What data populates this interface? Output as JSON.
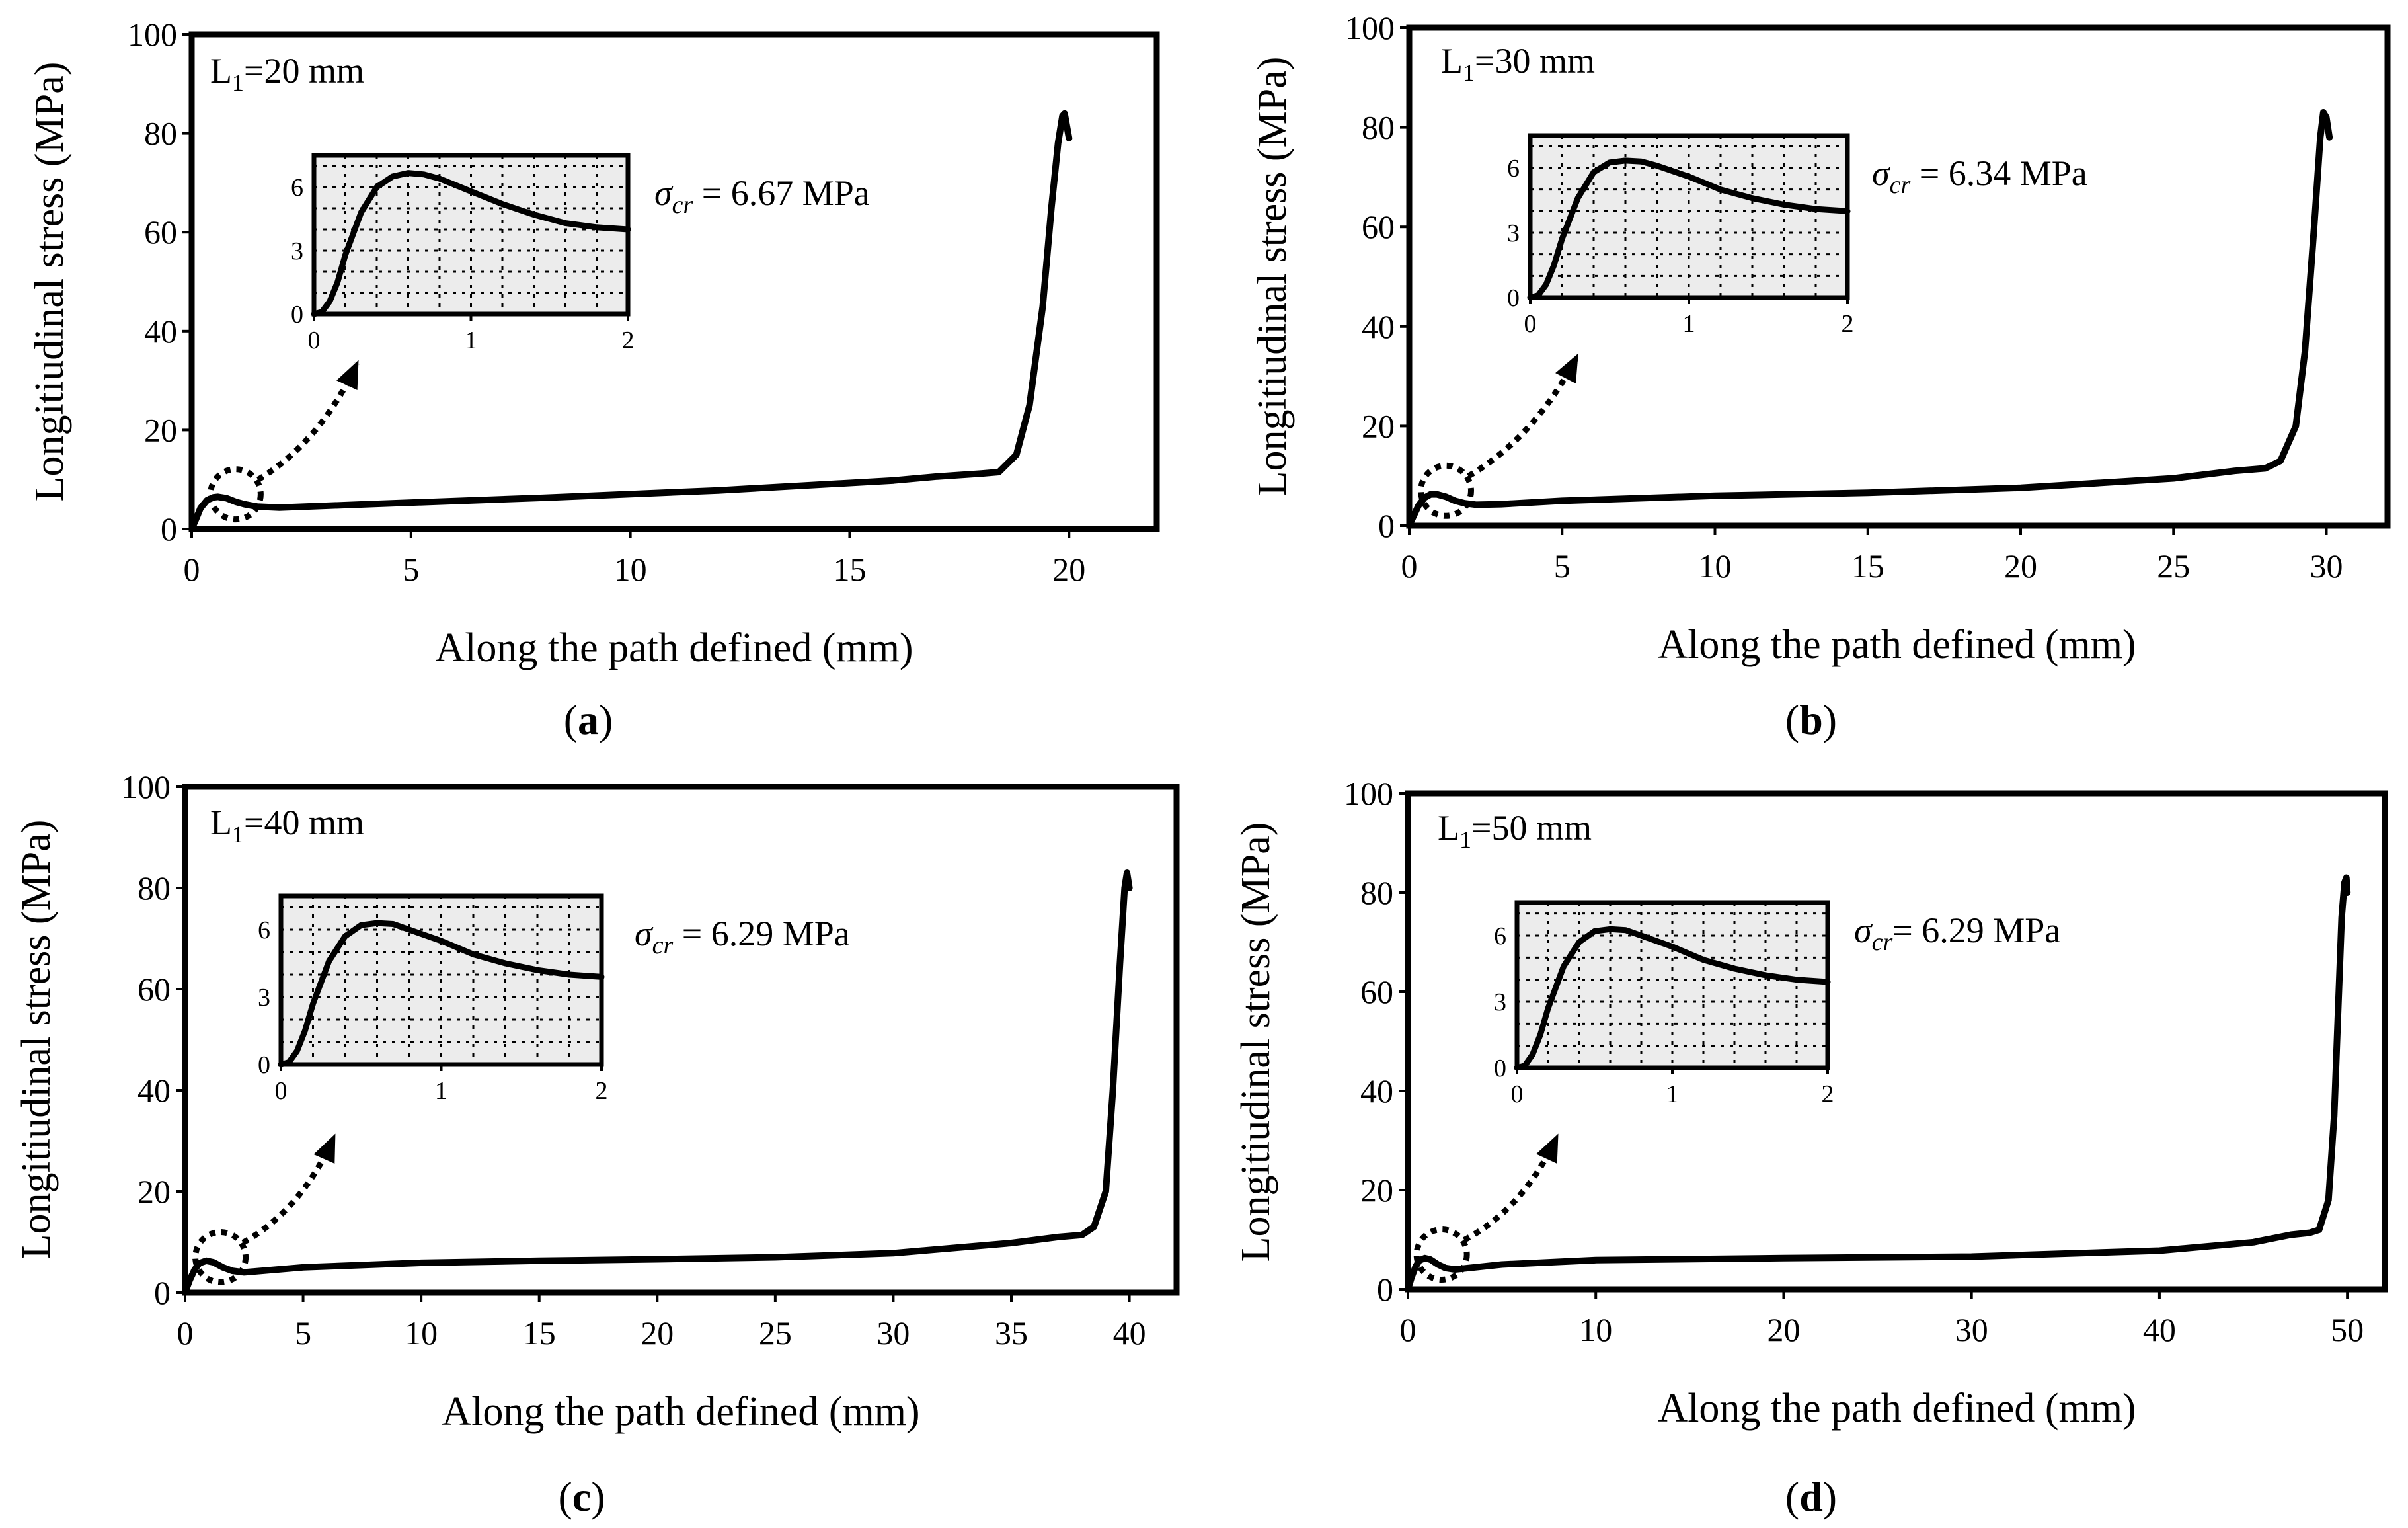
{
  "chart_data": [
    {
      "type": "line",
      "panel": "(a)",
      "panel_letter": "a",
      "title": "",
      "length_label": "L",
      "length_sub": "1",
      "length_value": "=20 mm",
      "sigma_prefix": "σ",
      "sigma_sub": "cr",
      "sigma_value": " = 6.67 MPa",
      "sigma_cr": 6.67,
      "xlabel": "Along the path defined (mm)",
      "ylabel": "Longitiudinal stress (MPa)",
      "xlim": [
        0,
        22
      ],
      "ylim": [
        0,
        100
      ],
      "xticks": [
        0,
        5,
        10,
        15,
        20
      ],
      "yticks": [
        0,
        20,
        40,
        60,
        80,
        100
      ],
      "x": [
        0,
        0.1,
        0.2,
        0.35,
        0.5,
        0.6,
        0.8,
        1.0,
        1.2,
        1.5,
        2,
        4,
        8,
        12,
        16,
        17,
        18,
        18.4,
        18.8,
        19.1,
        19.4,
        19.6,
        19.75,
        19.85,
        19.9,
        20.0
      ],
      "y": [
        0,
        2.0,
        4.2,
        5.8,
        6.4,
        6.5,
        6.2,
        5.5,
        5.0,
        4.5,
        4.3,
        5.0,
        6.3,
        7.8,
        9.8,
        10.6,
        11.2,
        11.5,
        15,
        25,
        45,
        65,
        78,
        83.5,
        84,
        79
      ],
      "inset": {
        "xlim": [
          0,
          2
        ],
        "ylim": [
          0,
          7.5
        ],
        "xticks": [
          0,
          1,
          2
        ],
        "yticks": [
          0,
          3,
          6
        ],
        "x": [
          0,
          0.05,
          0.1,
          0.15,
          0.2,
          0.3,
          0.4,
          0.5,
          0.6,
          0.7,
          0.8,
          1.0,
          1.2,
          1.4,
          1.6,
          1.8,
          2.0
        ],
        "y": [
          0,
          0.1,
          0.6,
          1.5,
          2.8,
          4.8,
          6.0,
          6.5,
          6.67,
          6.6,
          6.4,
          5.8,
          5.2,
          4.7,
          4.3,
          4.1,
          4.0
        ]
      }
    },
    {
      "type": "line",
      "panel": "(b)",
      "panel_letter": "b",
      "title": "",
      "length_label": "L",
      "length_sub": "1",
      "length_value": "=30 mm",
      "sigma_prefix": "σ",
      "sigma_sub": "cr",
      "sigma_value": " = 6.34 MPa",
      "sigma_cr": 6.34,
      "xlabel": "Along the path defined (mm)",
      "ylabel": "Longitiudinal stress (MPa)",
      "xlim": [
        0,
        32
      ],
      "ylim": [
        0,
        100
      ],
      "xticks": [
        0,
        5,
        10,
        15,
        20,
        25,
        30
      ],
      "yticks": [
        0,
        20,
        40,
        60,
        80,
        100
      ],
      "x": [
        0,
        0.15,
        0.3,
        0.5,
        0.7,
        0.9,
        1.2,
        1.5,
        1.8,
        2.2,
        3,
        5,
        10,
        15,
        20,
        25,
        27,
        28,
        28.5,
        29,
        29.3,
        29.6,
        29.8,
        29.9,
        30.0,
        30.1
      ],
      "y": [
        0,
        2.0,
        4.0,
        5.6,
        6.3,
        6.3,
        5.8,
        5.0,
        4.5,
        4.2,
        4.3,
        5.0,
        6.0,
        6.6,
        7.6,
        9.5,
        11.0,
        11.5,
        13,
        20,
        35,
        60,
        78,
        83,
        82,
        78
      ],
      "inset": {
        "xlim": [
          0,
          2
        ],
        "ylim": [
          0,
          7.5
        ],
        "xticks": [
          0,
          1,
          2
        ],
        "yticks": [
          0,
          3,
          6
        ],
        "x": [
          0,
          0.05,
          0.1,
          0.15,
          0.2,
          0.3,
          0.4,
          0.5,
          0.6,
          0.7,
          0.8,
          1.0,
          1.2,
          1.4,
          1.6,
          1.8,
          2.0
        ],
        "y": [
          0,
          0.1,
          0.6,
          1.5,
          2.7,
          4.6,
          5.8,
          6.25,
          6.34,
          6.3,
          6.1,
          5.6,
          5.0,
          4.6,
          4.3,
          4.1,
          4.0
        ]
      }
    },
    {
      "type": "line",
      "panel": "(c)",
      "panel_letter": "c",
      "title": "",
      "length_label": "L",
      "length_sub": "1",
      "length_value": "=40 mm",
      "sigma_prefix": "σ",
      "sigma_sub": "cr",
      "sigma_value": " = 6.29 MPa",
      "sigma_cr": 6.29,
      "xlabel": "Along the path defined (mm)",
      "ylabel": "Longitiudinal stress (MPa)",
      "xlim": [
        0,
        42
      ],
      "ylim": [
        0,
        100
      ],
      "xticks": [
        0,
        5,
        10,
        15,
        20,
        25,
        30,
        35,
        40
      ],
      "yticks": [
        0,
        20,
        40,
        60,
        80,
        100
      ],
      "x": [
        0,
        0.2,
        0.4,
        0.6,
        0.9,
        1.2,
        1.6,
        2.0,
        2.5,
        3,
        5,
        10,
        15,
        20,
        25,
        30,
        35,
        37,
        38,
        38.5,
        39,
        39.3,
        39.6,
        39.8,
        39.9,
        40.0
      ],
      "y": [
        0,
        2.5,
        4.5,
        5.8,
        6.3,
        6.0,
        5.0,
        4.3,
        4.0,
        4.2,
        5.0,
        5.9,
        6.3,
        6.6,
        7.0,
        7.8,
        9.8,
        11.0,
        11.4,
        13,
        20,
        40,
        65,
        80,
        83,
        80
      ],
      "inset": {
        "xlim": [
          0,
          2
        ],
        "ylim": [
          0,
          7.5
        ],
        "xticks": [
          0,
          1,
          2
        ],
        "yticks": [
          0,
          3,
          6
        ],
        "x": [
          0,
          0.05,
          0.1,
          0.15,
          0.2,
          0.3,
          0.4,
          0.5,
          0.6,
          0.7,
          0.8,
          1.0,
          1.2,
          1.4,
          1.6,
          1.8,
          2.0
        ],
        "y": [
          0,
          0.1,
          0.6,
          1.5,
          2.7,
          4.6,
          5.7,
          6.2,
          6.29,
          6.25,
          6.0,
          5.5,
          4.9,
          4.5,
          4.2,
          4.0,
          3.9
        ]
      }
    },
    {
      "type": "line",
      "panel": "(d)",
      "panel_letter": "d",
      "title": "",
      "length_label": "L",
      "length_sub": "1",
      "length_value": "=50 mm",
      "sigma_prefix": "σ",
      "sigma_sub": "cr",
      "sigma_value": "= 6.29 MPa",
      "sigma_cr": 6.29,
      "xlabel": "Along the path defined (mm)",
      "ylabel": "Longitiudinal stress (MPa)",
      "xlim": [
        0,
        52
      ],
      "ylim": [
        0,
        100
      ],
      "xticks": [
        0,
        10,
        20,
        30,
        40,
        50
      ],
      "yticks": [
        0,
        20,
        40,
        60,
        80,
        100
      ],
      "x": [
        0,
        0.2,
        0.4,
        0.6,
        0.9,
        1.2,
        1.6,
        2.0,
        2.5,
        3,
        5,
        10,
        20,
        30,
        40,
        45,
        47,
        48,
        48.5,
        49,
        49.3,
        49.5,
        49.7,
        49.85,
        49.95,
        50.0
      ],
      "y": [
        0,
        2.5,
        4.5,
        5.8,
        6.3,
        6.0,
        5.0,
        4.3,
        4.0,
        4.2,
        5.0,
        5.9,
        6.3,
        6.6,
        7.8,
        9.5,
        11.0,
        11.4,
        12,
        18,
        35,
        55,
        75,
        82,
        83,
        80
      ],
      "inset": {
        "xlim": [
          0,
          2
        ],
        "ylim": [
          0,
          7.5
        ],
        "xticks": [
          0,
          1,
          2
        ],
        "yticks": [
          0,
          3,
          6
        ],
        "x": [
          0,
          0.05,
          0.1,
          0.15,
          0.2,
          0.3,
          0.4,
          0.5,
          0.6,
          0.7,
          0.8,
          1.0,
          1.2,
          1.4,
          1.6,
          1.8,
          2.0
        ],
        "y": [
          0,
          0.1,
          0.6,
          1.5,
          2.7,
          4.6,
          5.7,
          6.2,
          6.29,
          6.25,
          6.0,
          5.5,
          4.9,
          4.5,
          4.2,
          4.0,
          3.9
        ]
      }
    }
  ]
}
